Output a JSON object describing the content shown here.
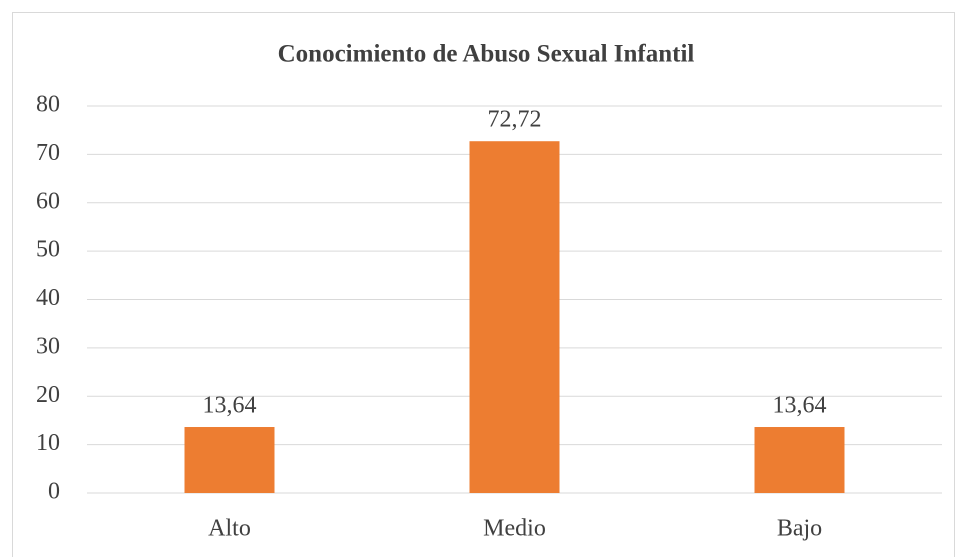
{
  "chart_data": {
    "type": "bar",
    "title": "Conocimiento de Abuso Sexual Infantil",
    "categories": [
      "Alto",
      "Medio",
      "Bajo"
    ],
    "values": [
      13.64,
      72.72,
      13.64
    ],
    "value_labels": [
      "13,64",
      "72,72",
      "13,64"
    ],
    "color": "#ed7d31",
    "ylim": [
      0,
      80
    ],
    "yticks": [
      0,
      10,
      20,
      30,
      40,
      50,
      60,
      70,
      80
    ],
    "grid": true
  }
}
